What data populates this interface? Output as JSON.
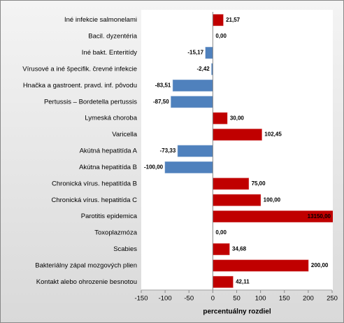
{
  "chart_data": {
    "type": "hbar",
    "x_label": "percentuálny rozdiel",
    "categories": [
      "Iné infekcie salmonelami",
      "Bacil. dyzentéria",
      "Iné bakt. Enteritídy",
      "Vírusové a iné špecifik. črevné infekcie",
      "Hnačka a gastroent. pravd. inf. pôvodu",
      "Pertussis – Bordetella pertussis",
      "Lymeská choroba",
      "Varicella",
      "Akútná hepatitída A",
      "Akútna hepatitída B",
      "Chronická vírus. hepatitída B",
      "Chronická vírus. hepatitída C",
      "Parotitis epidemica",
      "Toxoplazmóza",
      "Scabies",
      "Bakteriálny zápal mozgových plien",
      "Kontakt alebo ohrozenie besnotou"
    ],
    "values": [
      21.57,
      0,
      -15.17,
      -2.42,
      -83.51,
      -87.5,
      30,
      102.45,
      -73.33,
      -100,
      75,
      100,
      13150,
      0,
      34.68,
      200,
      42.11
    ],
    "value_labels": [
      "21,57",
      "0,00",
      "-15,17",
      "-2,42",
      "-83,51",
      "-87,50",
      "30,00",
      "102,45",
      "-73,33",
      "-100,00",
      "75,00",
      "100,00",
      "13150,00",
      "0,00",
      "34,68",
      "200,00",
      "42,11"
    ],
    "positive_color": "#c00000",
    "negative_color": "#4f81bd",
    "xlim": [
      -150,
      250
    ],
    "xticks": [
      -150,
      -100,
      -50,
      0,
      50,
      100,
      150,
      200,
      250
    ]
  }
}
